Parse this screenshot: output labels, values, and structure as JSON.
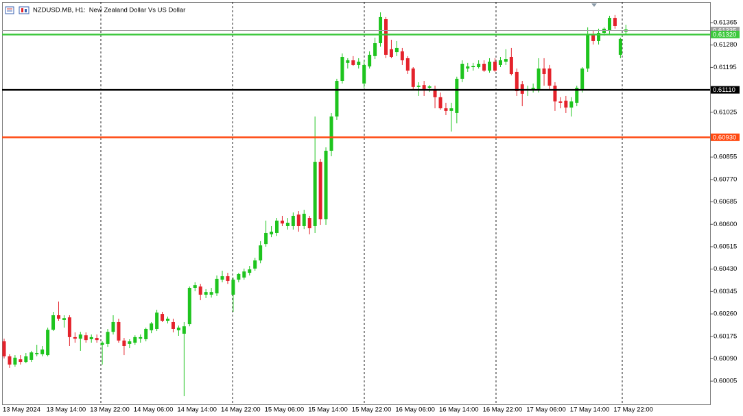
{
  "chart_data": {
    "type": "candlestick",
    "title": "NZDUSD.MB, H1:  New Zealand Dollar Vs US Dollar",
    "up_color": "#1ec41e",
    "down_color": "#e4222b",
    "grid": false,
    "ylim": [
      0.59917,
      0.61443
    ],
    "yticks": [
      0.61365,
      {
        "value": 0.6128,
        "label": "0.61280"
      },
      0.61195,
      0.61025,
      0.60855,
      {
        "value": 0.6077,
        "label": "0.60770"
      },
      0.60685,
      {
        "value": 0.606,
        "label": "0.60600"
      },
      0.60515,
      {
        "value": 0.6043,
        "label": "0.60430"
      },
      0.60345,
      {
        "value": 0.6026,
        "label": "0.60260"
      },
      0.60175,
      {
        "value": 0.6009,
        "label": "0.60090"
      },
      0.60005
    ],
    "levels": [
      {
        "value": 0.61335,
        "label": "0.61335",
        "color": "#a0a0a0"
      },
      {
        "value": 0.6132,
        "label": "0.61320",
        "color": "#3cc83c"
      },
      {
        "value": 0.6111,
        "label": "0.61110",
        "color": "#000000"
      },
      {
        "value": 0.6093,
        "label": "0.60930",
        "color": "#ff4a12"
      }
    ],
    "categories": [
      "13 May 2024",
      null,
      null,
      null,
      null,
      null,
      null,
      null,
      "13 May 14:00",
      null,
      null,
      null,
      null,
      null,
      null,
      null,
      "13 May 22:00",
      null,
      null,
      null,
      null,
      null,
      null,
      null,
      "14 May 06:00",
      null,
      null,
      null,
      null,
      null,
      null,
      null,
      "14 May 14:00",
      null,
      null,
      null,
      null,
      null,
      null,
      null,
      "14 May 22:00",
      null,
      null,
      null,
      null,
      null,
      null,
      null,
      "15 May 06:00",
      null,
      null,
      null,
      null,
      null,
      null,
      null,
      "15 May 14:00",
      null,
      null,
      null,
      null,
      null,
      null,
      null,
      "15 May 22:00",
      null,
      null,
      null,
      null,
      null,
      null,
      null,
      "16 May 06:00",
      null,
      null,
      null,
      null,
      null,
      null,
      null,
      "16 May 14:00",
      null,
      null,
      null,
      null,
      null,
      null,
      null,
      "16 May 22:00",
      null,
      null,
      null,
      null,
      null,
      null,
      null,
      "17 May 06:00",
      null,
      null,
      null,
      null,
      null,
      null,
      null,
      "17 May 14:00",
      null,
      null,
      null,
      null,
      null,
      null,
      null,
      "17 May 22:00",
      null,
      null
    ],
    "open": [
      0.60156,
      0.60099,
      0.60068,
      0.60088,
      0.60078,
      0.60086,
      0.60107,
      0.60107,
      0.60104,
      0.602,
      0.60255,
      0.60237,
      0.60247,
      0.60172,
      0.60166,
      0.60179,
      0.60164,
      0.60169,
      0.60143,
      0.60146,
      0.60192,
      0.60229,
      0.60159,
      0.60146,
      0.60151,
      0.60166,
      0.60164,
      0.60198,
      0.60203,
      0.6026,
      0.60234,
      0.60229,
      0.60198,
      0.60185,
      0.60221,
      0.60359,
      0.60364,
      0.60333,
      0.60333,
      0.60338,
      0.6039,
      0.60403,
      0.60333,
      0.6039,
      0.60398,
      0.60416,
      0.60432,
      0.60463,
      0.60525,
      0.60562,
      0.60567,
      0.60614,
      0.60593,
      0.60593,
      0.60637,
      0.60593,
      0.60624,
      0.60593,
      0.60837,
      0.60619,
      0.60879,
      0.61009,
      0.61144,
      0.61212,
      0.61222,
      0.61204,
      0.61134,
      0.61199,
      0.61238,
      0.61287,
      0.61378,
      0.61264,
      0.61253,
      0.61256,
      0.6123,
      0.61191,
      0.61121,
      0.61128,
      0.61118,
      0.61113,
      0.61082,
      0.6104,
      0.6103,
      0.61022,
      0.61152,
      0.61191,
      0.61196,
      0.61196,
      0.61209,
      0.61183,
      0.61217,
      0.61204,
      0.61217,
      0.61235,
      0.61178,
      0.61131,
      0.61108,
      0.61113,
      0.61113,
      0.61191,
      0.61191,
      0.61126,
      0.61066,
      0.61069,
      0.61043,
      0.61061,
      0.61113,
      0.61191,
      0.61321,
      0.61295,
      0.61326,
      0.61334,
      0.61383,
      0.61243,
      0.61331
    ],
    "high": [
      0.60166,
      0.60107,
      0.60104,
      0.60104,
      0.60112,
      0.6012,
      0.60143,
      0.60138,
      0.60208,
      0.60268,
      0.60307,
      0.60255,
      0.60255,
      0.6019,
      0.60192,
      0.6019,
      0.60182,
      0.60182,
      0.60156,
      0.60203,
      0.60255,
      0.60242,
      0.60169,
      0.60164,
      0.60179,
      0.60182,
      0.60208,
      0.60229,
      0.60276,
      0.60268,
      0.6025,
      0.60242,
      0.60216,
      0.60229,
      0.60364,
      0.6038,
      0.60374,
      0.60354,
      0.60359,
      0.60406,
      0.60424,
      0.60416,
      0.60398,
      0.60416,
      0.60432,
      0.60442,
      0.60473,
      0.60536,
      0.60614,
      0.60593,
      0.60624,
      0.60632,
      0.60624,
      0.60645,
      0.6065,
      0.60655,
      0.60632,
      0.61009,
      0.60848,
      0.60892,
      0.61022,
      0.61152,
      0.61248,
      0.6123,
      0.61238,
      0.6123,
      0.61222,
      0.61256,
      0.61308,
      0.61404,
      0.61386,
      0.613,
      0.61295,
      0.61269,
      0.61238,
      0.61196,
      0.61139,
      0.61144,
      0.61128,
      0.61126,
      0.611,
      0.61061,
      0.61061,
      0.6116,
      0.61222,
      0.61212,
      0.61212,
      0.61222,
      0.61222,
      0.6123,
      0.6123,
      0.61235,
      0.61264,
      0.61269,
      0.61191,
      0.61144,
      0.61126,
      0.61134,
      0.6123,
      0.6123,
      0.61204,
      0.61139,
      0.61082,
      0.61087,
      0.61082,
      0.61126,
      0.61196,
      0.61347,
      0.61334,
      0.61342,
      0.61347,
      0.61391,
      0.61394,
      0.61308,
      0.61357
    ],
    "low": [
      0.60091,
      0.60055,
      0.6006,
      0.60068,
      0.60073,
      0.60078,
      0.60099,
      0.60099,
      0.60099,
      0.60195,
      0.60234,
      0.60208,
      0.60138,
      0.60151,
      0.6012,
      0.60151,
      0.60151,
      0.60151,
      0.60068,
      0.60135,
      0.60182,
      0.60151,
      0.60104,
      0.6013,
      0.60143,
      0.60151,
      0.60156,
      0.60187,
      0.60195,
      0.60229,
      0.60224,
      0.6019,
      0.60177,
      0.59948,
      0.60213,
      0.60346,
      0.60312,
      0.6032,
      0.60322,
      0.60328,
      0.6038,
      0.60374,
      0.60268,
      0.6038,
      0.6039,
      0.60406,
      0.60424,
      0.60452,
      0.60515,
      0.60551,
      0.60556,
      0.60593,
      0.6058,
      0.6058,
      0.60572,
      0.60582,
      0.60562,
      0.60567,
      0.60598,
      0.60598,
      0.60858,
      0.60996,
      0.61134,
      0.61191,
      0.61201,
      0.61191,
      0.61118,
      0.61191,
      0.61227,
      0.61274,
      0.6123,
      0.6123,
      0.61238,
      0.61204,
      0.6117,
      0.61113,
      0.61087,
      0.61087,
      0.61102,
      0.6104,
      0.61035,
      0.61014,
      0.60952,
      0.60983,
      0.61139,
      0.61178,
      0.61183,
      0.61191,
      0.61178,
      0.61175,
      0.61178,
      0.61196,
      0.61204,
      0.61165,
      0.61087,
      0.61048,
      0.61087,
      0.611,
      0.611,
      0.61126,
      0.61113,
      0.6103,
      0.6104,
      0.61022,
      0.61009,
      0.61048,
      0.611,
      0.61178,
      0.61282,
      0.61282,
      0.61316,
      0.61321,
      0.61342,
      0.6123,
      0.61321
    ],
    "close": [
      0.60099,
      0.60068,
      0.60094,
      0.60078,
      0.60099,
      0.60114,
      0.60112,
      0.60125,
      0.602,
      0.60255,
      0.60242,
      0.60244,
      0.60172,
      0.60166,
      0.60182,
      0.60161,
      0.60172,
      0.60161,
      0.60151,
      0.60192,
      0.60229,
      0.60159,
      0.60138,
      0.60156,
      0.60172,
      0.60172,
      0.60203,
      0.60224,
      0.60265,
      0.60234,
      0.60242,
      0.60203,
      0.60208,
      0.60213,
      0.60359,
      0.60369,
      0.60333,
      0.60343,
      0.60343,
      0.60393,
      0.60403,
      0.60385,
      0.6039,
      0.60411,
      0.60421,
      0.60429,
      0.60463,
      0.6052,
      0.60567,
      0.60572,
      0.60614,
      0.60603,
      0.60606,
      0.60632,
      0.60593,
      0.6064,
      0.60585,
      0.60837,
      0.60619,
      0.60879,
      0.61009,
      0.61144,
      0.61235,
      0.61222,
      0.61204,
      0.61217,
      0.61204,
      0.61243,
      0.61287,
      0.61386,
      0.61243,
      0.61235,
      0.61269,
      0.61222,
      0.61183,
      0.61121,
      0.61126,
      0.61113,
      0.61123,
      0.61082,
      0.6104,
      0.6103,
      0.6104,
      0.61152,
      0.61209,
      0.61199,
      0.61201,
      0.61209,
      0.61183,
      0.61217,
      0.61183,
      0.61222,
      0.61227,
      0.6117,
      0.61105,
      0.61095,
      0.61113,
      0.61118,
      0.61191,
      0.6117,
      0.61126,
      0.61066,
      0.61061,
      0.61043,
      0.61066,
      0.61118,
      0.61191,
      0.61321,
      0.61295,
      0.61326,
      0.61342,
      0.61383,
      0.61352,
      0.61303,
      0.61339
    ]
  }
}
